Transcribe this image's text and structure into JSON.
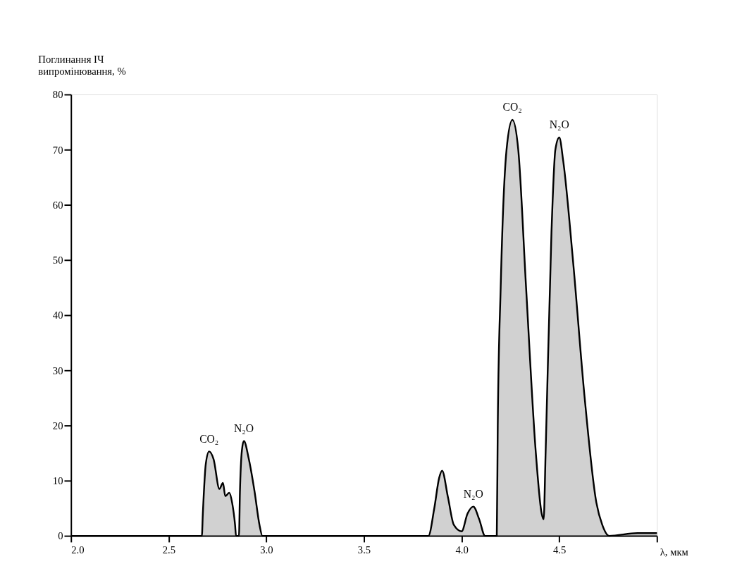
{
  "chart_data": {
    "type": "area",
    "xlabel": "λ, мкм",
    "ylabel": "Поглинання ІЧ\nвипромінювання, %",
    "xlim": [
      2.0,
      5.0
    ],
    "xticks": [
      {
        "value": 2.0,
        "label": "2.0"
      },
      2.5,
      {
        "value": 3.0,
        "label": "3.0"
      },
      3.5,
      {
        "value": 4.0,
        "label": "4.0"
      },
      4.5,
      {
        "value": 5.0,
        "label": null
      }
    ],
    "ylim": [
      0,
      80
    ],
    "yticks": [
      0,
      10,
      20,
      30,
      40,
      50,
      60,
      70,
      80
    ],
    "grid": false,
    "marker": "none",
    "line_style": "solid",
    "series": [
      {
        "color": "#000000",
        "x": [
          2.0,
          2.67,
          2.675,
          2.69,
          2.707,
          2.73,
          2.76,
          2.778,
          2.79,
          2.81,
          2.825,
          2.84,
          2.845,
          2.86,
          2.865,
          2.875,
          2.885,
          2.91,
          2.94,
          2.965,
          2.98,
          3.83,
          3.86,
          3.885,
          3.9,
          3.93,
          3.96,
          4.0,
          4.03,
          4.06,
          4.09,
          4.12,
          4.18,
          4.185,
          4.2,
          4.23,
          4.26,
          4.29,
          4.33,
          4.38,
          4.41,
          4.42,
          4.43,
          4.46,
          4.48,
          4.5,
          4.52,
          4.57,
          4.63,
          4.69,
          4.72,
          4.755,
          4.9,
          5.0
        ],
        "values": [
          0,
          0,
          4,
          13,
          15.3,
          13.9,
          8.5,
          9.6,
          7.2,
          7.8,
          6,
          2,
          0,
          0,
          8,
          15.5,
          17.2,
          14,
          8,
          2,
          0,
          0,
          5,
          10.5,
          11.8,
          7,
          2,
          0.8,
          4,
          5.3,
          3,
          0,
          0,
          20,
          45,
          70,
          75.4,
          70,
          45,
          15,
          4,
          3,
          15,
          55,
          70,
          72.2,
          68,
          50,
          25,
          6,
          2,
          0,
          0.5,
          0.5
        ]
      }
    ],
    "annotations": [
      {
        "text": "CO₂",
        "x": 2.707,
        "y": 15.3
      },
      {
        "text": "N₂O",
        "x": 2.885,
        "y": 17.2
      },
      {
        "text": "N₂O",
        "x": 4.06,
        "y": 5.3
      },
      {
        "text": "CO₂",
        "x": 4.26,
        "y": 75.4
      },
      {
        "text": "N₂O",
        "x": 4.5,
        "y": 72.2
      }
    ]
  }
}
